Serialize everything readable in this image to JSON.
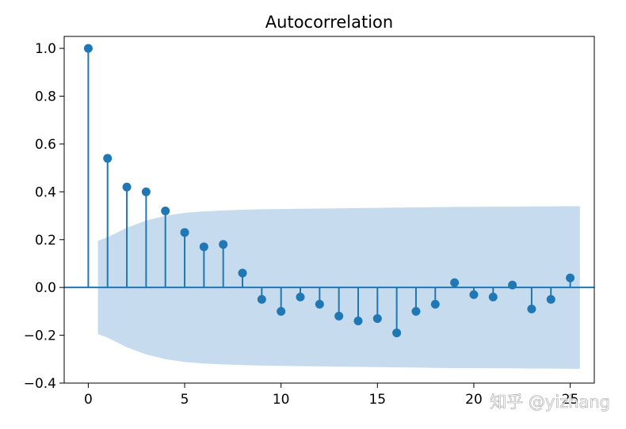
{
  "chart_data": {
    "type": "stem",
    "title": "Autocorrelation",
    "xlabel": "",
    "ylabel": "",
    "xlim": [
      -1.25,
      26.25
    ],
    "ylim": [
      -0.4,
      1.05
    ],
    "xticks": [
      0,
      5,
      10,
      15,
      20,
      25
    ],
    "xtick_labels": [
      "0",
      "5",
      "10",
      "15",
      "20",
      "25"
    ],
    "yticks": [
      1.0,
      0.8,
      0.6,
      0.4,
      0.2,
      0.0,
      -0.2,
      -0.4
    ],
    "ytick_labels": [
      "1.0",
      "0.8",
      "0.6",
      "0.4",
      "0.2",
      "0.0",
      "−0.2",
      "−0.4"
    ],
    "grid": false,
    "lags": [
      0,
      1,
      2,
      3,
      4,
      5,
      6,
      7,
      8,
      9,
      10,
      11,
      12,
      13,
      14,
      15,
      16,
      17,
      18,
      19,
      20,
      21,
      22,
      23,
      24,
      25
    ],
    "values": [
      1.0,
      0.54,
      0.42,
      0.4,
      0.32,
      0.23,
      0.17,
      0.18,
      0.06,
      -0.05,
      -0.1,
      -0.04,
      -0.07,
      -0.12,
      -0.14,
      -0.13,
      -0.19,
      -0.1,
      -0.07,
      0.02,
      -0.03,
      -0.04,
      0.01,
      -0.09,
      -0.05,
      0.04
    ],
    "confidence_band": {
      "x": [
        0.5,
        1,
        2,
        3,
        4,
        5,
        6,
        7,
        8,
        9,
        10,
        11,
        12,
        13,
        14,
        15,
        16,
        17,
        18,
        19,
        20,
        21,
        22,
        23,
        24,
        25,
        25.5
      ],
      "upper": [
        0.195,
        0.21,
        0.25,
        0.28,
        0.3,
        0.312,
        0.318,
        0.322,
        0.325,
        0.327,
        0.328,
        0.329,
        0.33,
        0.331,
        0.332,
        0.333,
        0.334,
        0.335,
        0.336,
        0.337,
        0.337,
        0.338,
        0.338,
        0.339,
        0.339,
        0.34,
        0.34
      ],
      "lower": [
        -0.195,
        -0.21,
        -0.25,
        -0.28,
        -0.3,
        -0.312,
        -0.318,
        -0.322,
        -0.325,
        -0.327,
        -0.328,
        -0.329,
        -0.33,
        -0.331,
        -0.332,
        -0.333,
        -0.334,
        -0.335,
        -0.336,
        -0.337,
        -0.337,
        -0.338,
        -0.338,
        -0.339,
        -0.339,
        -0.34,
        -0.34
      ]
    },
    "colors": {
      "stem": "#1f77b4",
      "band": "#c6dbed"
    },
    "watermark": "知乎 @yizhang"
  }
}
